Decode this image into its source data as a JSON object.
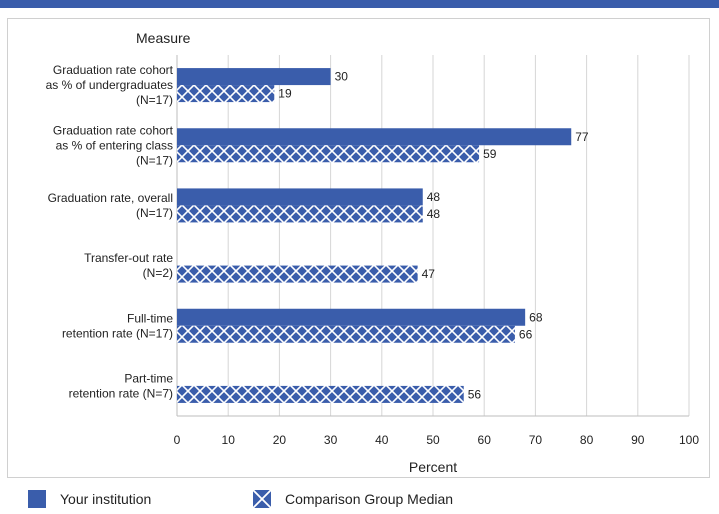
{
  "chart_data": {
    "type": "bar",
    "orientation": "horizontal",
    "ylabel": "Measure",
    "xlabel": "Percent",
    "xlim": [
      0,
      100
    ],
    "xticks": [
      0,
      10,
      20,
      30,
      40,
      50,
      60,
      70,
      80,
      90,
      100
    ],
    "grid": true,
    "legend_position": "bottom",
    "categories": [
      [
        "Graduation rate cohort",
        "as % of undergraduates",
        "(N=17)"
      ],
      [
        "Graduation rate cohort",
        "as % of entering class",
        "(N=17)"
      ],
      [
        "Graduation rate, overall",
        "(N=17)"
      ],
      [
        "Transfer-out rate",
        "(N=2)"
      ],
      [
        "Full-time",
        "retention rate (N=17)"
      ],
      [
        "Part-time",
        "retention rate (N=7)"
      ]
    ],
    "series": [
      {
        "name": "Your institution",
        "color": "#3a5dab",
        "pattern": "solid",
        "values": [
          30,
          77,
          48,
          null,
          68,
          null
        ]
      },
      {
        "name": "Comparison Group Median",
        "color": "#3a5dab",
        "pattern": "crosshatch",
        "values": [
          19,
          59,
          48,
          47,
          66,
          56
        ]
      }
    ]
  },
  "legend": {
    "items": [
      "Your institution",
      "Comparison Group Median"
    ]
  }
}
